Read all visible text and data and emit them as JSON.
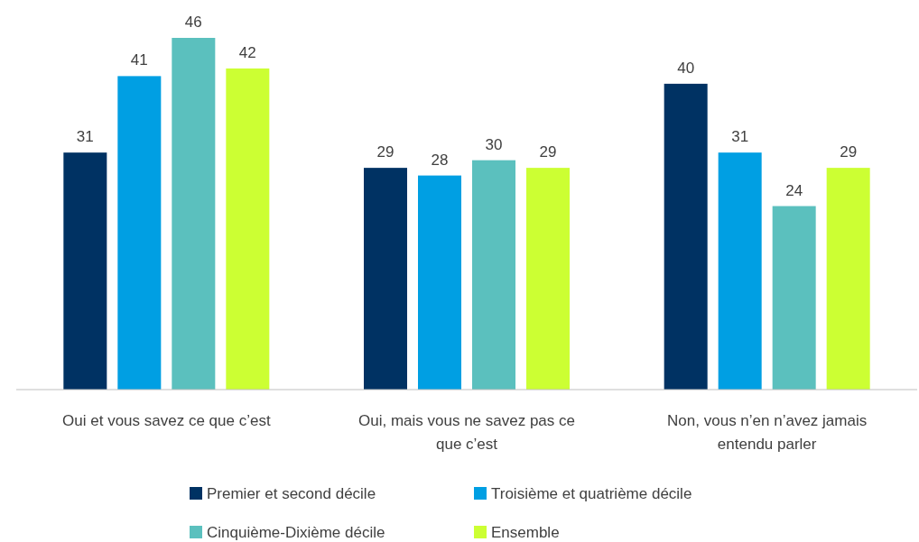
{
  "chart_data": {
    "type": "bar",
    "categories": [
      "Oui et vous savez ce que c’est",
      "Oui, mais vous ne savez pas ce que c’est",
      "Non, vous n’en n’avez jamais entendu parler"
    ],
    "series": [
      {
        "name": "Premier et second décile",
        "color": "#003263",
        "values": [
          31,
          29,
          40
        ]
      },
      {
        "name": "Troisième et quatrième décile",
        "color": "#009fe3",
        "values": [
          41,
          28,
          31
        ]
      },
      {
        "name": "Cinquième-Dixième décile",
        "color": "#5bc0be",
        "values": [
          46,
          30,
          24
        ]
      },
      {
        "name": "Ensemble",
        "color": "#ccff33",
        "values": [
          42,
          29,
          29
        ]
      }
    ],
    "data_labels": true,
    "legend": "bottom",
    "grid": false
  }
}
